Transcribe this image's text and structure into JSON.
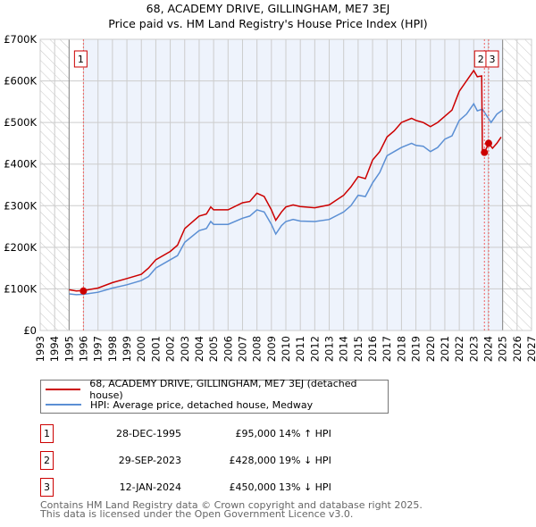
{
  "title_line1": "68, ACADEMY DRIVE, GILLINGHAM, ME7 3EJ",
  "title_line2": "Price paid vs. HM Land Registry's House Price Index (HPI)",
  "colors": {
    "property": "#cc0000",
    "hpi": "#5b8fd4",
    "shade": "#eef3fc",
    "grid": "#cccccc"
  },
  "chart_data": {
    "type": "line",
    "title": "Price paid vs. HM Land Registry's House Price Index (HPI)",
    "xlim": [
      1993,
      2027
    ],
    "ylim": [
      0,
      700000
    ],
    "x_ticks": [
      "1993",
      "1994",
      "1995",
      "1996",
      "1997",
      "1998",
      "1999",
      "2000",
      "2001",
      "2002",
      "2003",
      "2004",
      "2005",
      "2006",
      "2007",
      "2008",
      "2009",
      "2010",
      "2011",
      "2012",
      "2013",
      "2014",
      "2015",
      "2016",
      "2017",
      "2018",
      "2019",
      "2020",
      "2021",
      "2022",
      "2023",
      "2024",
      "2025",
      "2026",
      "2027"
    ],
    "y_ticks": [
      {
        "v": 0,
        "label": "£0"
      },
      {
        "v": 100000,
        "label": "£100K"
      },
      {
        "v": 200000,
        "label": "£200K"
      },
      {
        "v": 300000,
        "label": "£300K"
      },
      {
        "v": 400000,
        "label": "£400K"
      },
      {
        "v": 500000,
        "label": "£500K"
      },
      {
        "v": 600000,
        "label": "£600K"
      },
      {
        "v": 700000,
        "label": "£700K"
      }
    ],
    "data_range": [
      1995,
      2025
    ],
    "legend_position": "below",
    "series": [
      {
        "name": "68, ACADEMY DRIVE, GILLINGHAM, ME7 3EJ (detached house)",
        "color": "#cc0000",
        "points": [
          [
            1995,
            98000
          ],
          [
            1995.5,
            95000
          ],
          [
            1996,
            96000
          ],
          [
            1997,
            102000
          ],
          [
            1998,
            115000
          ],
          [
            1999,
            125000
          ],
          [
            2000,
            135000
          ],
          [
            2000.5,
            150000
          ],
          [
            2001,
            170000
          ],
          [
            2002,
            190000
          ],
          [
            2002.5,
            205000
          ],
          [
            2003,
            245000
          ],
          [
            2004,
            275000
          ],
          [
            2004.5,
            280000
          ],
          [
            2004.8,
            297000
          ],
          [
            2005,
            290000
          ],
          [
            2006,
            290000
          ],
          [
            2007,
            307000
          ],
          [
            2007.5,
            310000
          ],
          [
            2008,
            330000
          ],
          [
            2008.5,
            322000
          ],
          [
            2009,
            290000
          ],
          [
            2009.3,
            265000
          ],
          [
            2009.7,
            285000
          ],
          [
            2010,
            297000
          ],
          [
            2010.5,
            302000
          ],
          [
            2011,
            298000
          ],
          [
            2012,
            295000
          ],
          [
            2013,
            302000
          ],
          [
            2014,
            325000
          ],
          [
            2014.5,
            345000
          ],
          [
            2015,
            370000
          ],
          [
            2015.5,
            365000
          ],
          [
            2016,
            410000
          ],
          [
            2016.5,
            430000
          ],
          [
            2017,
            465000
          ],
          [
            2017.5,
            480000
          ],
          [
            2018,
            500000
          ],
          [
            2018.7,
            510000
          ],
          [
            2019,
            505000
          ],
          [
            2019.5,
            500000
          ],
          [
            2020,
            490000
          ],
          [
            2020.5,
            500000
          ],
          [
            2021,
            515000
          ],
          [
            2021.5,
            530000
          ],
          [
            2022,
            575000
          ],
          [
            2022.5,
            600000
          ],
          [
            2023,
            625000
          ],
          [
            2023.25,
            610000
          ],
          [
            2023.55,
            612000
          ],
          [
            2023.6,
            430000
          ],
          [
            2023.75,
            428000
          ],
          [
            2024.03,
            450000
          ],
          [
            2024.3,
            438000
          ],
          [
            2024.6,
            450000
          ],
          [
            2024.9,
            465000
          ]
        ]
      },
      {
        "name": "HPI: Average price, detached house, Medway",
        "color": "#5b8fd4",
        "points": [
          [
            1995,
            88000
          ],
          [
            1995.5,
            86000
          ],
          [
            1996,
            87000
          ],
          [
            1997,
            92000
          ],
          [
            1998,
            102000
          ],
          [
            1999,
            110000
          ],
          [
            2000,
            120000
          ],
          [
            2000.5,
            130000
          ],
          [
            2001,
            150000
          ],
          [
            2002,
            170000
          ],
          [
            2002.5,
            180000
          ],
          [
            2003,
            212000
          ],
          [
            2004,
            240000
          ],
          [
            2004.5,
            245000
          ],
          [
            2004.8,
            262000
          ],
          [
            2005,
            255000
          ],
          [
            2006,
            255000
          ],
          [
            2007,
            270000
          ],
          [
            2007.5,
            275000
          ],
          [
            2008,
            290000
          ],
          [
            2008.5,
            285000
          ],
          [
            2009,
            255000
          ],
          [
            2009.3,
            232000
          ],
          [
            2009.7,
            252000
          ],
          [
            2010,
            262000
          ],
          [
            2010.5,
            267000
          ],
          [
            2011,
            263000
          ],
          [
            2012,
            262000
          ],
          [
            2013,
            267000
          ],
          [
            2014,
            285000
          ],
          [
            2014.5,
            300000
          ],
          [
            2015,
            325000
          ],
          [
            2015.5,
            322000
          ],
          [
            2016,
            355000
          ],
          [
            2016.5,
            380000
          ],
          [
            2017,
            420000
          ],
          [
            2017.5,
            430000
          ],
          [
            2018,
            440000
          ],
          [
            2018.7,
            450000
          ],
          [
            2019,
            445000
          ],
          [
            2019.5,
            443000
          ],
          [
            2020,
            430000
          ],
          [
            2020.5,
            440000
          ],
          [
            2021,
            460000
          ],
          [
            2021.5,
            468000
          ],
          [
            2022,
            505000
          ],
          [
            2022.5,
            520000
          ],
          [
            2023,
            545000
          ],
          [
            2023.25,
            528000
          ],
          [
            2023.6,
            532000
          ],
          [
            2024.2,
            500000
          ],
          [
            2024.6,
            520000
          ],
          [
            2025,
            530000
          ]
        ]
      }
    ],
    "sales": [
      {
        "id": "1",
        "x": 1995.99,
        "price": 95000
      },
      {
        "id": "2",
        "x": 2023.74,
        "price": 428000
      },
      {
        "id": "3",
        "x": 2024.03,
        "price": 450000
      }
    ]
  },
  "legend": {
    "property": "68, ACADEMY DRIVE, GILLINGHAM, ME7 3EJ (detached house)",
    "hpi": "HPI: Average price, detached house, Medway"
  },
  "transactions": [
    {
      "num": "1",
      "date": "28-DEC-1995",
      "price": "£95,000",
      "hpi": "14% ↑ HPI"
    },
    {
      "num": "2",
      "date": "29-SEP-2023",
      "price": "£428,000",
      "hpi": "19% ↓ HPI"
    },
    {
      "num": "3",
      "date": "12-JAN-2024",
      "price": "£450,000",
      "hpi": "13% ↓ HPI"
    }
  ],
  "footer": {
    "line1": "Contains HM Land Registry data © Crown copyright and database right 2025.",
    "line2": "This data is licensed under the Open Government Licence v3.0."
  }
}
